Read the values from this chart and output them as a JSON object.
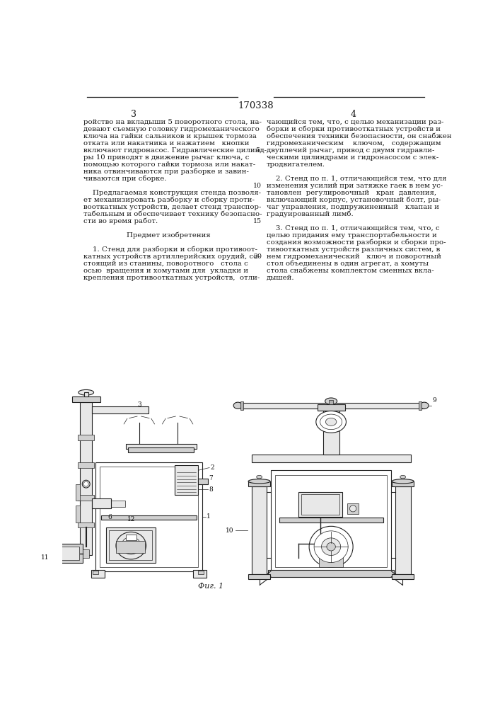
{
  "patent_number": "170338",
  "page_left": "3",
  "page_right": "4",
  "bg_color": "#ffffff",
  "text_color": "#1a1a1a",
  "col_left_lines": [
    "ройство на вкладыши 5 поворотного стола, на-",
    "девают съемную головку гидромеханического",
    "ключа на гайки сальников и крышек тормоза",
    "отката или накатника и нажатием   кнопки",
    "включают гидронасос. Гидравлические цилинд-",
    "ры 10 приводят в движение рычаг ключа, с",
    "помощью которого гайки тормоза или накат-",
    "ника отвинчиваются при разборке и завин-",
    "чиваются при сборке.",
    "",
    "    Предлагаемая конструкция стенда позволя-",
    "ет механизировать разборку и сборку проти-",
    "вооткатных устройств, делает стенд транспор-",
    "табельным и обеспечивает технику безопасно-",
    "сти во время работ.",
    "",
    "              Предмет изобретения",
    "",
    "    1. Стенд для разборки и сборки противоот-",
    "катных устройств артиллерийских орудий, со-",
    "стоящий из станины, поворотного   стола с",
    "осью  вращения и хомутами для  укладки и",
    "крепления противооткатных устройств,  отли-"
  ],
  "col_right_lines": [
    "чающийся тем, что, с целью механизации раз-",
    "борки и сборки противооткатных устройств и",
    "обеспечения техники безопасности, он снабжен",
    "гидромеханическим    ключом,   содержащим",
    "двуплечий рычаг, привод с двумя гидравли-",
    "ческими цилиндрами и гидронасосом с элек-",
    "тродвигателем.",
    "",
    "    2. Стенд по п. 1, отличающийся тем, что для",
    "изменения усилий при затяжке гаек в нем ус-",
    "тановлен  регулировочный   кран  давления,",
    "включающий корпус, установочный болт, ры-",
    "чаг управления, подпружиненный   клапан и",
    "градуированный лимб.",
    "",
    "    3. Стенд по п. 1, отличающийся тем, что, с",
    "целью придания ему транспортабельности и",
    "создания возможности разборки и сборки про-",
    "тивооткатных устройств различных систем, в",
    "нем гидромеханический   ключ и поворотный",
    "стол объединены в один агрегат, а хомуты",
    "стола снабжены комплектом сменных вкла-",
    "дышей."
  ],
  "right_line_numbers": {
    "4": "5",
    "9": "10",
    "14": "15",
    "19": "20"
  },
  "fig_caption": "Фиг. 1",
  "lc": "#222222",
  "lw_main": 0.8,
  "lw_thin": 0.5
}
